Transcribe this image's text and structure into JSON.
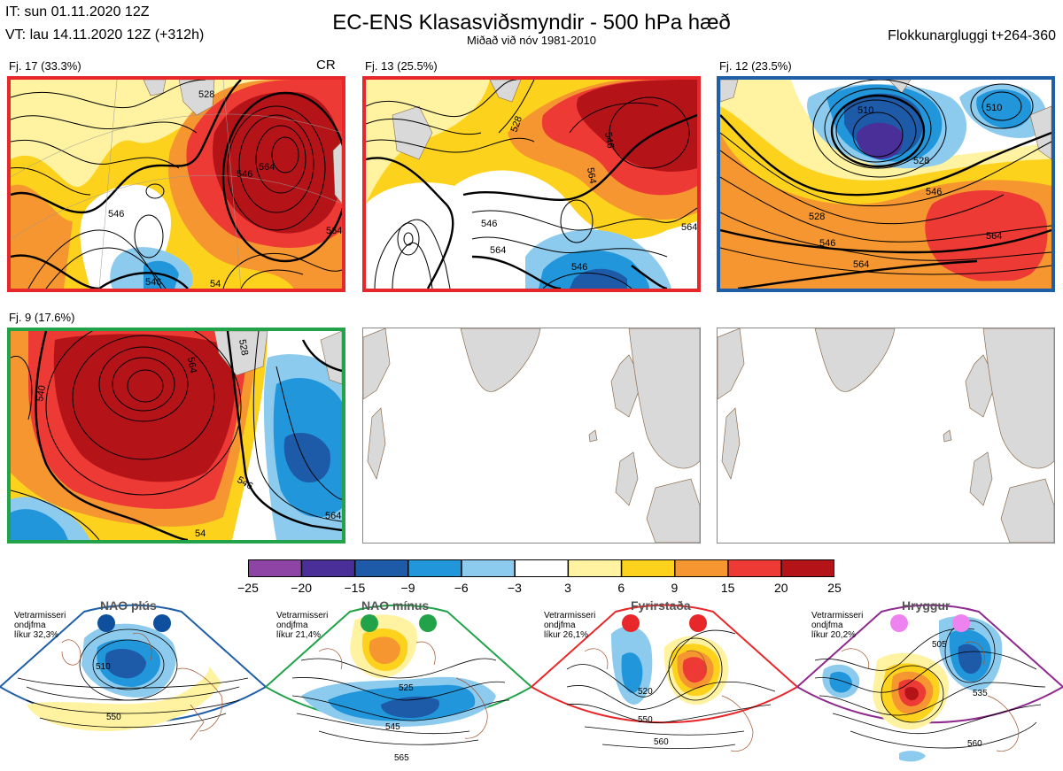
{
  "header": {
    "it_line": "IT: sun 01.11.2020 12Z",
    "vt_line": "VT: lau 14.11.2020 12Z  (+312h)",
    "title": "EC-ENS Klasasviðsmyndir - 500 hPa hæð",
    "subtitle": "Miðað við nóv 1981-2010",
    "window": "Flokkunargluggi t+264-360"
  },
  "panels": [
    {
      "label": "Fj. 17 (33.3%)",
      "tag": "CR",
      "border": "#e8272a",
      "contour_labels": [
        "546",
        "564",
        "528",
        "546",
        "546",
        "564",
        "54"
      ]
    },
    {
      "label": "Fj. 13 (25.5%)",
      "tag": "",
      "border": "#e8272a",
      "contour_labels": [
        "528",
        "546",
        "564",
        "546",
        "564",
        "546",
        "564"
      ]
    },
    {
      "label": "Fj. 12 (23.5%)",
      "tag": "",
      "border": "#1f5fa8",
      "contour_labels": [
        "510",
        "510",
        "528",
        "546",
        "528",
        "546",
        "564",
        "564"
      ]
    },
    {
      "label": "Fj. 9 (17.6%)",
      "tag": "",
      "border": "#22a34a",
      "contour_labels": [
        "564",
        "528",
        "540",
        "546",
        "564",
        "54"
      ]
    },
    {
      "label": "",
      "tag": "",
      "border": "#ffffff",
      "contour_labels": []
    },
    {
      "label": "",
      "tag": "",
      "border": "#ffffff",
      "contour_labels": []
    }
  ],
  "colorbar": {
    "ticks": [
      "−25",
      "−20",
      "−15",
      "−9",
      "−6",
      "−3",
      "3",
      "6",
      "9",
      "15",
      "20",
      "25"
    ],
    "colors": [
      "#8e44a4",
      "#4a2f99",
      "#1d5aa8",
      "#2196db",
      "#8ccbee",
      "#ffffff",
      "#fff2a0",
      "#fdd21c",
      "#f59630",
      "#ee3a34",
      "#b41418"
    ]
  },
  "regimes": [
    {
      "name": "NAO plús",
      "desc": [
        "Vetrarmisseri",
        "ondjfma",
        "líkur 32,3%"
      ],
      "color": "#1f5fa8",
      "dot": "#0e4f9e",
      "contour_labels": [
        "510",
        "550"
      ]
    },
    {
      "name": "NAO mínus",
      "desc": [
        "Vetrarmisseri",
        "ondjfma",
        "líkur 21,4%"
      ],
      "color": "#22a34a",
      "dot": "#22a34a",
      "contour_labels": [
        "525",
        "545",
        "565"
      ]
    },
    {
      "name": "Fyrirstaða",
      "desc": [
        "Vetrarmisseri",
        "ondjfma",
        "líkur 26,1%"
      ],
      "color": "#e8272a",
      "dot": "#e8272a",
      "contour_labels": [
        "520",
        "550",
        "560"
      ]
    },
    {
      "name": "Hryggur",
      "desc": [
        "Vetrarmisseri",
        "ondjfma",
        "líkur 20,2%"
      ],
      "color": "#8e2a8e",
      "dot": "#ee82ee",
      "contour_labels": [
        "505",
        "535",
        "560"
      ]
    }
  ]
}
